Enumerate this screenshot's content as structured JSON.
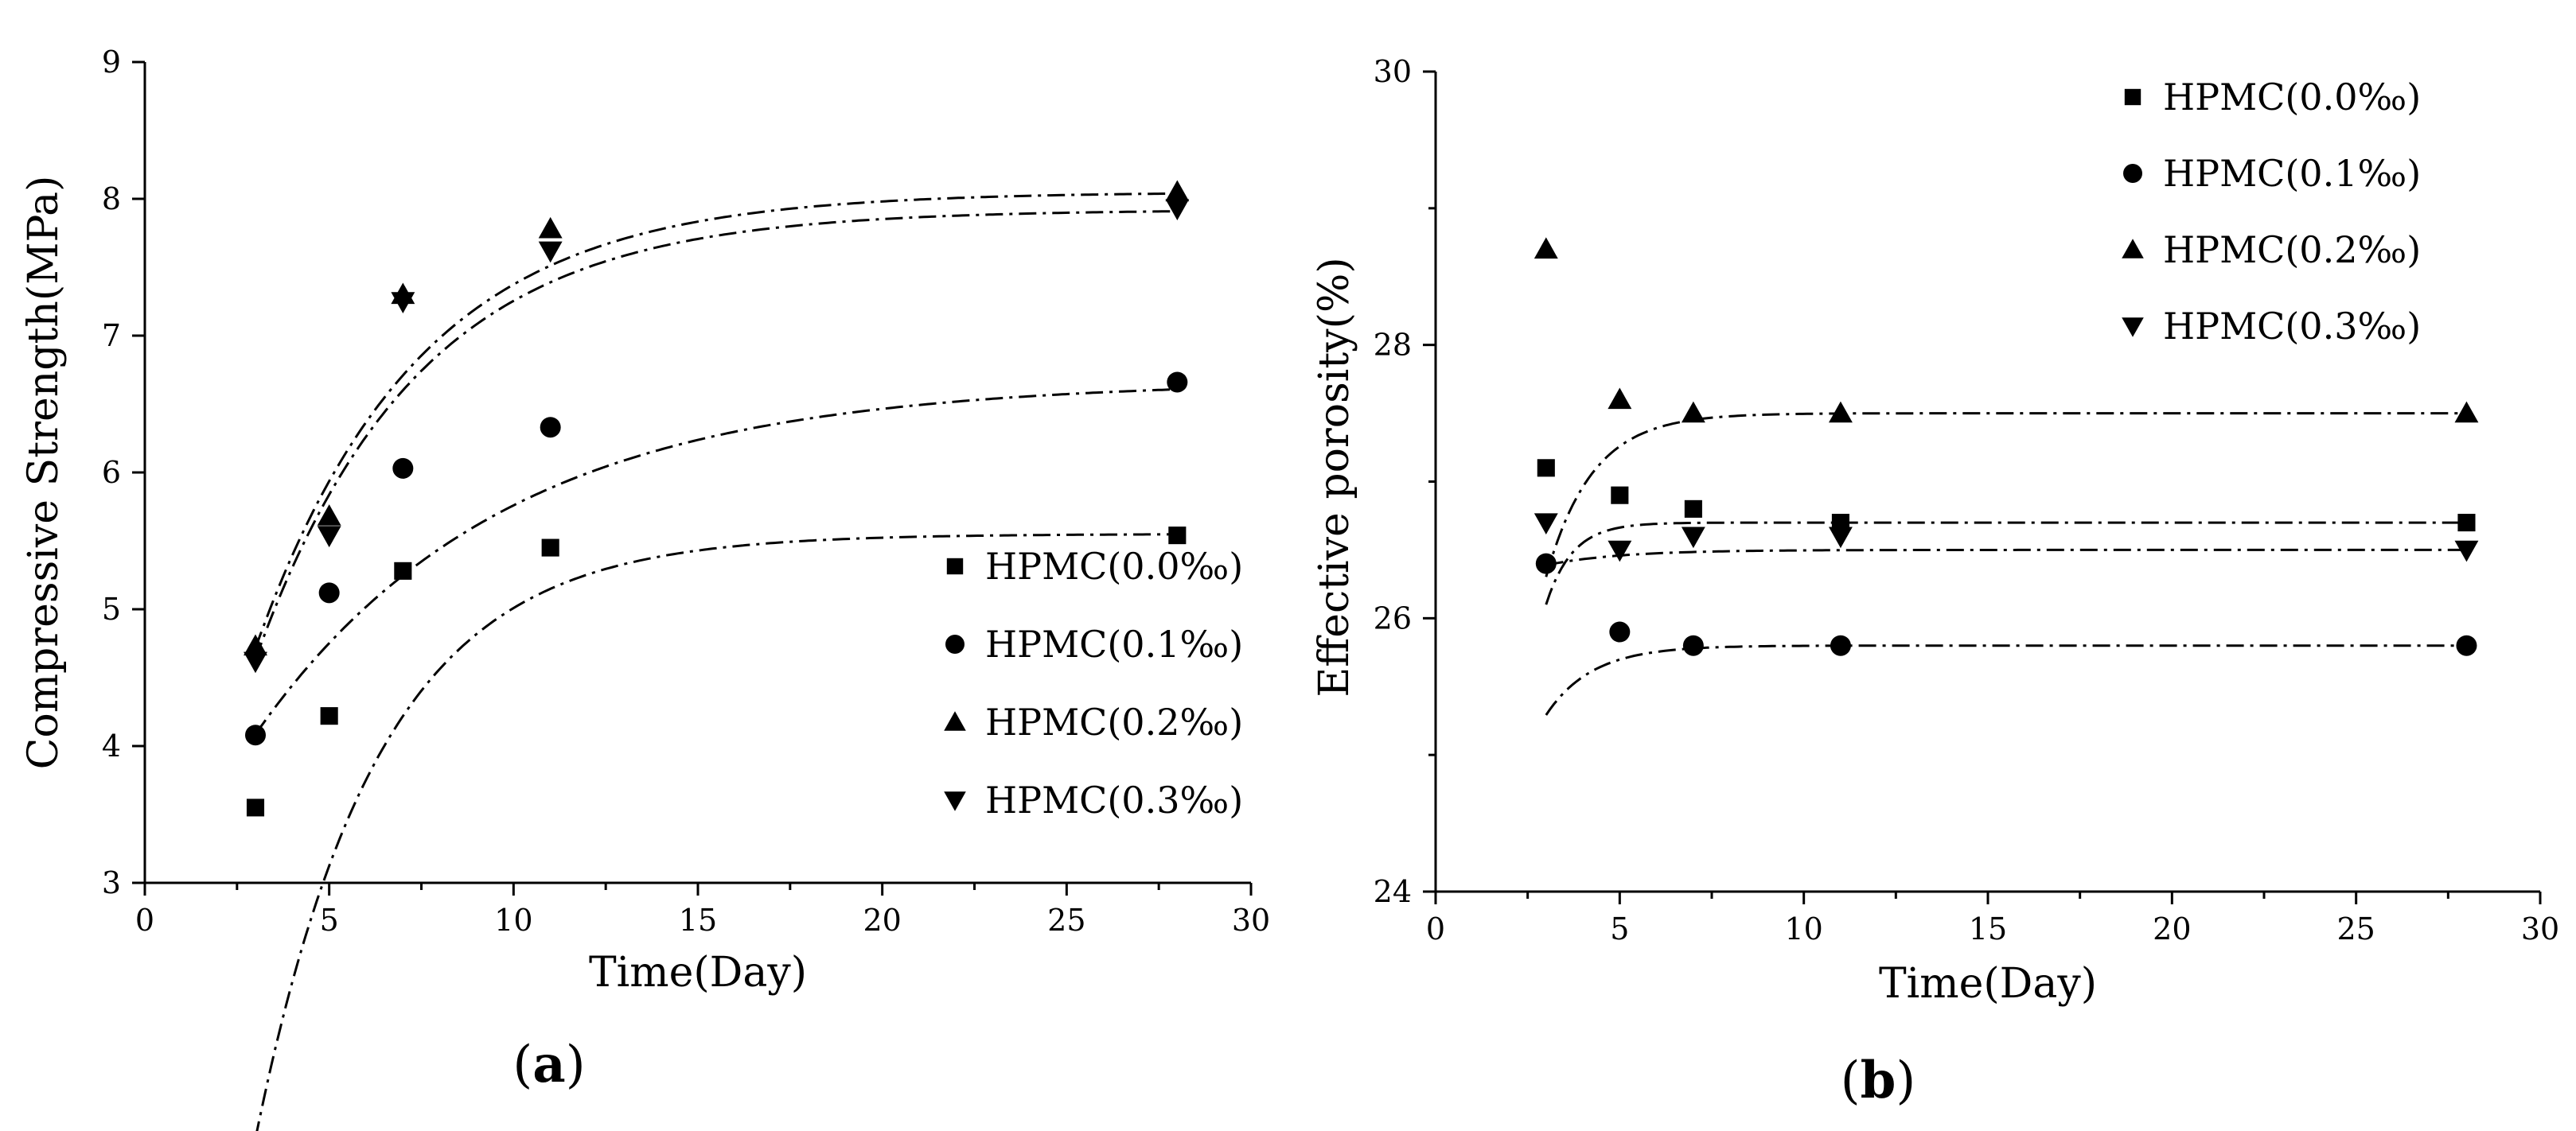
{
  "chart_data": [
    {
      "type": "scatter",
      "panel_label": "(a)",
      "xlabel": "Time(Day)",
      "ylabel": "Compressive Strength(MPa)",
      "xlim": [
        0,
        30
      ],
      "ylim": [
        3,
        9
      ],
      "xticks": [
        "0",
        "5",
        "10",
        "15",
        "20",
        "25",
        "30"
      ],
      "yticks": [
        "3",
        "4",
        "5",
        "6",
        "7",
        "8",
        "9"
      ],
      "legend_position": "bottom-right",
      "fit": "exponential",
      "series": [
        {
          "name": "HPMC(0.0‰)",
          "marker": "square",
          "x": [
            3,
            5,
            7,
            11,
            28
          ],
          "y": [
            3.55,
            4.22,
            5.28,
            5.45,
            5.54
          ],
          "fit": {
            "a": 5.55,
            "b": 10.87,
            "k": 0.3
          }
        },
        {
          "name": "HPMC(0.1‰)",
          "marker": "circle",
          "x": [
            3,
            5,
            7,
            11,
            28
          ],
          "y": [
            4.08,
            5.12,
            6.03,
            6.33,
            6.66
          ],
          "fit": {
            "a": 6.67,
            "b": 4.04,
            "k": 0.149
          }
        },
        {
          "name": "HPMC(0.2‰)",
          "marker": "triangle-up",
          "x": [
            3,
            5,
            7,
            11,
            28
          ],
          "y": [
            4.73,
            5.68,
            7.3,
            7.78,
            8.05
          ],
          "fit": {
            "a": 8.05,
            "b": 6.61,
            "k": 0.228
          }
        },
        {
          "name": "HPMC(0.3‰)",
          "marker": "triangle-down",
          "x": [
            3,
            5,
            7,
            11,
            28
          ],
          "y": [
            4.62,
            5.54,
            7.25,
            7.62,
            7.93
          ],
          "fit": {
            "a": 7.92,
            "b": 6.51,
            "k": 0.228
          }
        }
      ]
    },
    {
      "type": "scatter",
      "panel_label": "(b)",
      "xlabel": "Time(Day)",
      "ylabel": "Effective porosity(%)",
      "xlim": [
        0,
        30
      ],
      "ylim": [
        24,
        30
      ],
      "xticks": [
        "0",
        "5",
        "10",
        "15",
        "20",
        "25",
        "30"
      ],
      "yticks": [
        "24",
        "26",
        "28",
        "30"
      ],
      "legend_position": "top-right",
      "fit": "exponential",
      "series": [
        {
          "name": "HPMC(0.0‰)",
          "marker": "square",
          "x": [
            3,
            5,
            7,
            11,
            28
          ],
          "y": [
            27.1,
            26.9,
            26.8,
            26.7,
            26.7
          ],
          "fit": {
            "a": 26.7,
            "b": 40.0,
            "k": 1.4
          }
        },
        {
          "name": "HPMC(0.1‰)",
          "marker": "circle",
          "x": [
            3,
            5,
            7,
            11,
            28
          ],
          "y": [
            26.4,
            25.9,
            25.8,
            25.8,
            25.8
          ],
          "fit": {
            "a": 25.8,
            "b": 5.6,
            "k": 0.8
          }
        },
        {
          "name": "HPMC(0.2‰)",
          "marker": "triangle-up",
          "x": [
            3,
            5,
            7,
            11,
            28
          ],
          "y": [
            28.7,
            27.6,
            27.5,
            27.5,
            27.5
          ],
          "fit": {
            "a": 27.5,
            "b": 13.2,
            "k": 0.8
          }
        },
        {
          "name": "HPMC(0.3‰)",
          "marker": "triangle-down",
          "x": [
            3,
            5,
            7,
            11,
            28
          ],
          "y": [
            26.7,
            26.5,
            26.6,
            26.6,
            26.5
          ],
          "fit": {
            "a": 26.5,
            "b": 0.5,
            "k": 0.5
          }
        }
      ]
    }
  ]
}
